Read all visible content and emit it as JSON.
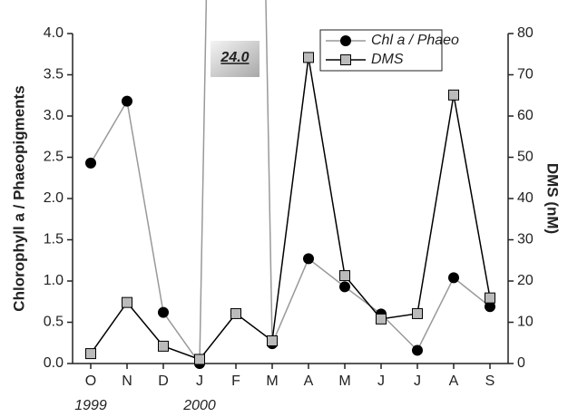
{
  "chart_data": {
    "type": "line",
    "ylabel": "Chlorophyll a / Phaeopigments",
    "y2label": "DMS (nM)",
    "categories": [
      "O",
      "N",
      "D",
      "J",
      "F",
      "M",
      "A",
      "M",
      "J",
      "J",
      "A",
      "S"
    ],
    "year_labels": [
      "1999",
      null,
      null,
      "2000",
      null,
      null,
      null,
      null,
      null,
      null,
      null,
      null
    ],
    "series": [
      {
        "name": "Chl a / Phaeo",
        "color": "#999999",
        "marker": "circle",
        "marker_color": "#000000",
        "values": [
          2.43,
          3.18,
          0.62,
          0.0,
          24.0,
          0.24,
          1.27,
          0.93,
          0.6,
          0.16,
          1.04,
          0.69
        ],
        "value_labels": [
          null,
          null,
          null,
          null,
          "24.0",
          null,
          null,
          null,
          null,
          null,
          null,
          null
        ]
      },
      {
        "name": "DMS",
        "color": "#000000",
        "marker": "square",
        "marker_color": "#bbbbbb",
        "axis": "y2",
        "values": [
          2.4,
          14.8,
          4.2,
          1.0,
          12.1,
          5.5,
          74.2,
          21.3,
          10.8,
          12.1,
          65.1,
          15.9
        ]
      }
    ],
    "ylim": [
      0,
      4
    ],
    "yticks": [
      {
        "value": 0,
        "label": "0.0"
      },
      0.5,
      {
        "value": 1,
        "label": "1.0"
      },
      1.5,
      {
        "value": 2,
        "label": "2.0"
      },
      2.5,
      {
        "value": 3,
        "label": "3.0"
      },
      3.5,
      {
        "value": 4,
        "label": "4.0"
      }
    ],
    "y2lim": [
      0,
      80
    ],
    "y2ticks": [
      0,
      10,
      20,
      30,
      40,
      50,
      60,
      70,
      80
    ],
    "legend": "top-right"
  }
}
